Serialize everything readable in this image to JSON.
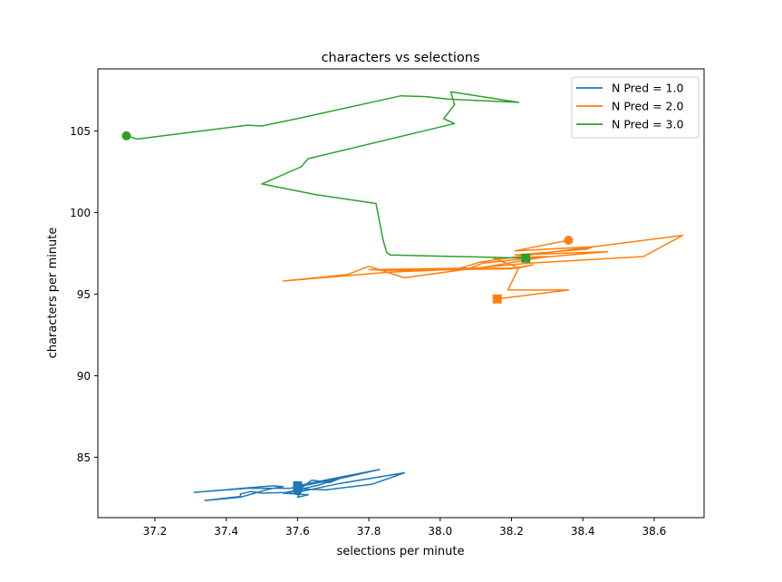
{
  "chart_data": {
    "type": "line",
    "title": "characters vs selections",
    "xlabel": "selections per minute",
    "ylabel": "characters per minute",
    "xlim": [
      37.04,
      38.74
    ],
    "ylim": [
      81.3,
      108.8
    ],
    "x_ticks": [
      37.2,
      37.4,
      37.6,
      37.8,
      38.0,
      38.2,
      38.4,
      38.6
    ],
    "x_tick_labels": [
      "37.2",
      "37.4",
      "37.6",
      "37.8",
      "38.0",
      "38.2",
      "38.4",
      "38.6"
    ],
    "y_ticks": [
      85,
      90,
      95,
      100,
      105
    ],
    "y_tick_labels": [
      "85",
      "90",
      "95",
      "100",
      "105"
    ],
    "grid": false,
    "legend_position": "top-right",
    "series": [
      {
        "name": "N Pred = 1.0",
        "color": "#1f77b4",
        "start_marker": "circle",
        "end_marker": "square",
        "points": [
          [
            37.6,
            82.95
          ],
          [
            37.61,
            83.1
          ],
          [
            37.64,
            83.6
          ],
          [
            37.69,
            83.45
          ],
          [
            37.73,
            83.8
          ],
          [
            37.66,
            83.3
          ],
          [
            37.56,
            82.8
          ],
          [
            37.63,
            82.7
          ],
          [
            37.6,
            82.55
          ],
          [
            37.61,
            82.9
          ],
          [
            37.72,
            83.4
          ],
          [
            37.9,
            84.05
          ],
          [
            37.81,
            83.35
          ],
          [
            37.68,
            83.0
          ],
          [
            37.62,
            83.05
          ],
          [
            37.58,
            82.85
          ],
          [
            37.5,
            82.8
          ],
          [
            37.47,
            82.9
          ],
          [
            37.44,
            82.75
          ],
          [
            37.44,
            82.6
          ],
          [
            37.34,
            82.35
          ],
          [
            37.44,
            82.55
          ],
          [
            37.52,
            83.05
          ],
          [
            37.56,
            83.2
          ],
          [
            37.53,
            83.25
          ],
          [
            37.31,
            82.85
          ],
          [
            37.46,
            83.1
          ],
          [
            37.58,
            83.1
          ],
          [
            37.74,
            83.8
          ],
          [
            37.78,
            84.0
          ],
          [
            37.83,
            84.25
          ],
          [
            37.7,
            83.7
          ],
          [
            37.6,
            83.25
          ]
        ]
      },
      {
        "name": "N Pred = 2.0",
        "color": "#ff7f0e",
        "start_marker": "circle",
        "end_marker": "square",
        "points": [
          [
            38.36,
            98.3
          ],
          [
            38.21,
            97.65
          ],
          [
            38.43,
            97.9
          ],
          [
            38.41,
            97.75
          ],
          [
            38.21,
            97.4
          ],
          [
            38.47,
            97.6
          ],
          [
            38.23,
            97.15
          ],
          [
            38.12,
            96.9
          ],
          [
            38.08,
            96.55
          ],
          [
            37.86,
            96.35
          ],
          [
            37.56,
            95.8
          ],
          [
            37.74,
            96.2
          ],
          [
            37.8,
            96.7
          ],
          [
            37.9,
            96.0
          ],
          [
            38.1,
            96.6
          ],
          [
            38.25,
            96.9
          ],
          [
            38.57,
            97.3
          ],
          [
            38.68,
            98.6
          ],
          [
            38.25,
            97.4
          ],
          [
            38.11,
            96.95
          ],
          [
            38.05,
            96.55
          ],
          [
            38.22,
            96.6
          ],
          [
            38.15,
            97.2
          ],
          [
            38.3,
            97.3
          ],
          [
            38.11,
            96.6
          ],
          [
            37.8,
            96.5
          ],
          [
            37.85,
            96.45
          ],
          [
            38.04,
            96.5
          ],
          [
            38.2,
            96.55
          ],
          [
            38.26,
            96.8
          ],
          [
            38.22,
            96.6
          ],
          [
            38.19,
            95.25
          ],
          [
            38.36,
            95.25
          ],
          [
            38.16,
            94.7
          ]
        ]
      },
      {
        "name": "N Pred = 3.0",
        "color": "#2ca02c",
        "start_marker": "circle",
        "end_marker": "square",
        "points": [
          [
            37.12,
            104.7
          ],
          [
            37.15,
            104.5
          ],
          [
            37.46,
            105.35
          ],
          [
            37.5,
            105.3
          ],
          [
            37.62,
            105.85
          ],
          [
            37.89,
            107.15
          ],
          [
            37.96,
            107.1
          ],
          [
            38.02,
            106.95
          ],
          [
            38.22,
            106.75
          ],
          [
            38.03,
            107.4
          ],
          [
            38.04,
            106.6
          ],
          [
            38.01,
            105.75
          ],
          [
            38.04,
            105.45
          ],
          [
            37.63,
            103.3
          ],
          [
            37.61,
            102.8
          ],
          [
            37.5,
            101.75
          ],
          [
            37.65,
            101.1
          ],
          [
            37.82,
            100.55
          ],
          [
            37.84,
            98.3
          ],
          [
            37.85,
            97.55
          ],
          [
            37.86,
            97.4
          ],
          [
            38.24,
            97.2
          ]
        ]
      }
    ]
  }
}
